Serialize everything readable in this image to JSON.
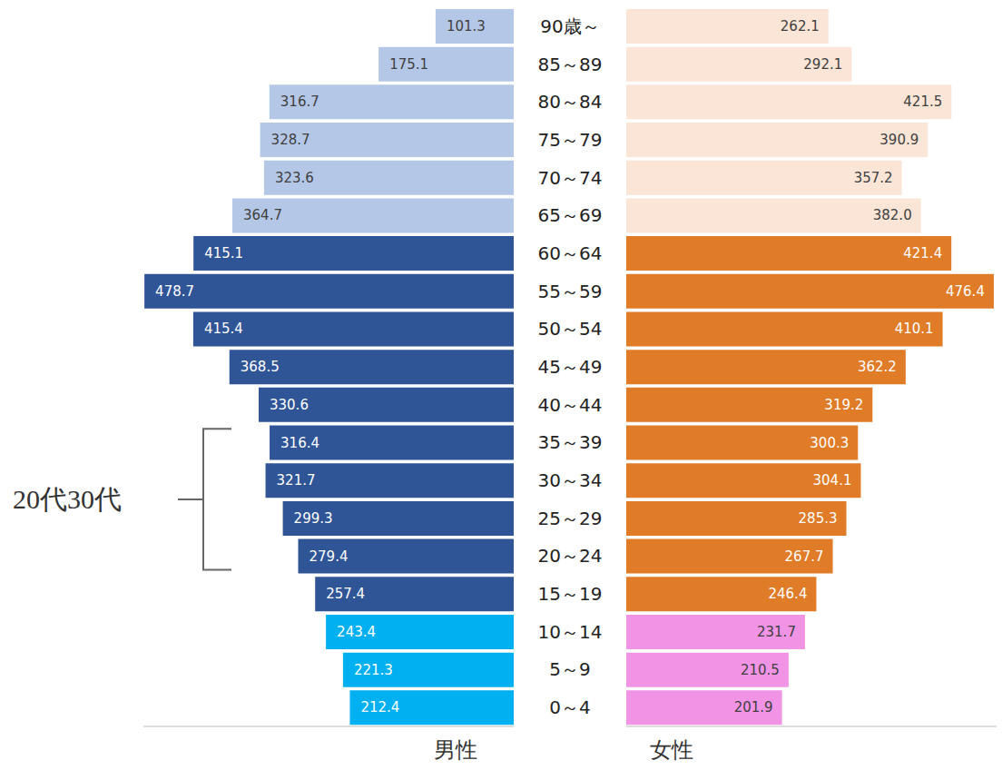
{
  "chart_data": {
    "type": "bar",
    "orientation": "horizontal",
    "data_labels": true,
    "tick_labels": false,
    "grid": false,
    "xlim": [
      0,
      480
    ],
    "categories": [
      "90歳～",
      "85～89",
      "80～84",
      "75～79",
      "70～74",
      "65～69",
      "60～64",
      "55～59",
      "50～54",
      "45～49",
      "40～44",
      "35～39",
      "30～34",
      "25～29",
      "20～24",
      "15～19",
      "10～14",
      "5～9",
      "0～4"
    ],
    "series": [
      {
        "name": "男性",
        "colors": [
          "#b4c7e7",
          "#b4c7e7",
          "#b4c7e7",
          "#b4c7e7",
          "#b4c7e7",
          "#b4c7e7",
          "#2f5597",
          "#2f5597",
          "#2f5597",
          "#2f5597",
          "#2f5597",
          "#2f5597",
          "#2f5597",
          "#2f5597",
          "#2f5597",
          "#2f5597",
          "#00b0f0",
          "#00b0f0",
          "#00b0f0"
        ],
        "values": [
          101.3,
          175.1,
          316.7,
          328.7,
          323.6,
          364.7,
          415.1,
          478.7,
          415.4,
          368.5,
          330.6,
          316.4,
          321.7,
          299.3,
          279.4,
          257.4,
          243.4,
          221.3,
          212.4
        ],
        "value_labels": [
          "101.3",
          "175.1",
          "316.7",
          "328.7",
          "323.6",
          "364.7",
          "415.1",
          "478.7",
          "415.4",
          "368.5",
          "330.6",
          "316.4",
          "321.7",
          "299.3",
          "279.4",
          "257.4",
          "243.4",
          "221.3",
          "212.4"
        ]
      },
      {
        "name": "女性",
        "colors": [
          "#fbe5d6",
          "#fbe5d6",
          "#fbe5d6",
          "#fbe5d6",
          "#fbe5d6",
          "#fbe5d6",
          "#e07b27",
          "#e07b27",
          "#e07b27",
          "#e07b27",
          "#e07b27",
          "#e07b27",
          "#e07b27",
          "#e07b27",
          "#e07b27",
          "#e07b27",
          "#f294e6",
          "#f294e6",
          "#f294e6"
        ],
        "values": [
          262.1,
          292.1,
          421.5,
          390.9,
          357.2,
          382.0,
          421.4,
          476.4,
          410.1,
          362.2,
          319.2,
          300.3,
          304.1,
          285.3,
          267.7,
          246.4,
          231.7,
          210.5,
          201.9
        ],
        "value_labels": [
          "262.1",
          "292.1",
          "421.5",
          "390.9",
          "357.2",
          "382.0",
          "421.4",
          "476.4",
          "410.1",
          "362.2",
          "319.2",
          "300.3",
          "304.1",
          "285.3",
          "267.7",
          "246.4",
          "231.7",
          "210.5",
          "201.9"
        ]
      }
    ],
    "annotations": [
      {
        "text": "20代30代",
        "from": "35～39",
        "to": "20～24"
      }
    ]
  }
}
